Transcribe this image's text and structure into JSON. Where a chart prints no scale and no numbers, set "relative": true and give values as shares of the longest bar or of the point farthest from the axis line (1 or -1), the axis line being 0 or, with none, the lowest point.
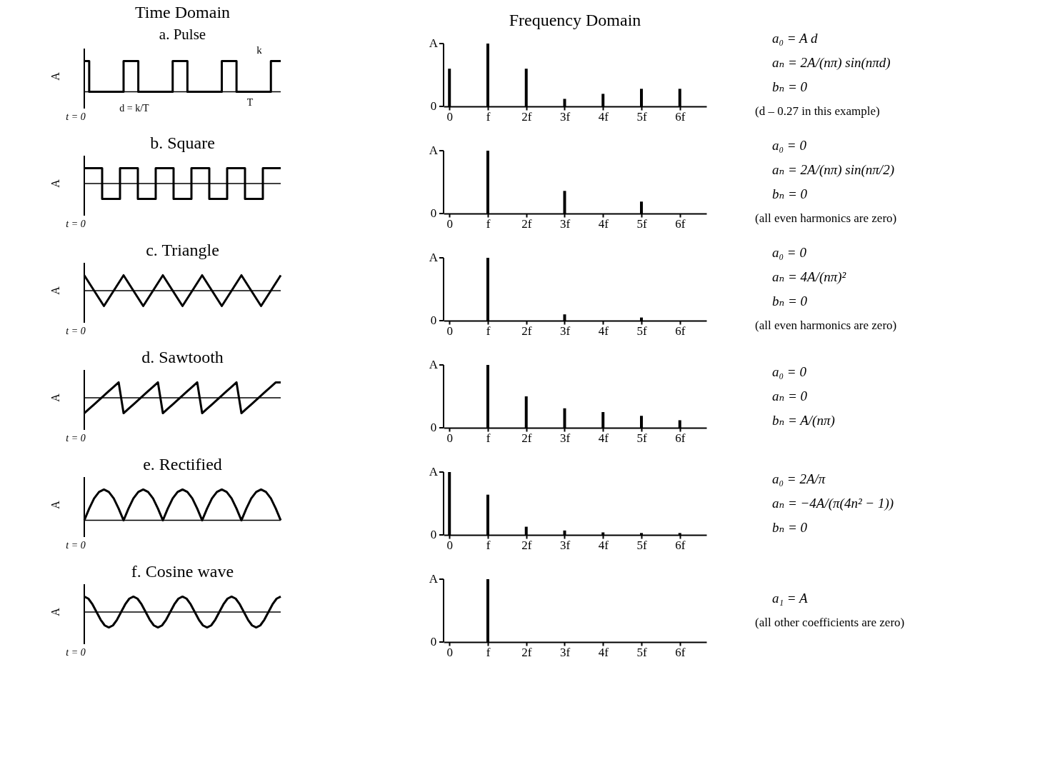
{
  "chart_data": [
    {
      "type": "step",
      "relative": true,
      "title": "Time Domain",
      "subtitle": "a. Pulse",
      "ylabel": "A",
      "color": "#000000",
      "annotations": [
        "d = k/T",
        "k",
        "T",
        "t = 0"
      ],
      "categories": [
        null,
        null,
        null,
        null,
        null,
        null,
        null,
        null,
        null,
        null,
        null,
        null,
        null,
        null,
        null,
        null,
        null,
        null,
        null,
        null,
        null,
        null,
        null,
        null,
        null,
        null,
        null,
        null,
        null,
        null,
        null,
        null,
        null,
        null,
        null,
        null,
        null,
        null,
        null,
        null,
        null
      ],
      "values": [
        1,
        0,
        0,
        0,
        0,
        0,
        0,
        0,
        1,
        1,
        1,
        0,
        0,
        0,
        0,
        0,
        0,
        0,
        1,
        1,
        1,
        0,
        0,
        0,
        0,
        0,
        0,
        0,
        1,
        1,
        1,
        0,
        0,
        0,
        0,
        0,
        0,
        0,
        1,
        1,
        1
      ]
    },
    {
      "type": "bar",
      "relative": true,
      "title": "Frequency Domain",
      "color": "#000000",
      "categories": [
        "0",
        "f",
        "2f",
        "3f",
        "4f",
        "5f",
        "6f"
      ],
      "values": [
        0.6,
        1,
        0.6,
        0.12,
        0.2,
        0.28,
        0.28
      ],
      "annotations": [
        "A",
        "0",
        "a₀ = A d",
        "aₙ = 2A/(nπ) sin(nπd)",
        "bₙ = 0",
        "(d – 0.27 in this example)"
      ]
    },
    {
      "type": "step",
      "relative": true,
      "title": "b. Square",
      "ylabel": "A",
      "color": "#000000",
      "annotations": [
        "t = 0"
      ],
      "categories": [
        null,
        null,
        null,
        null,
        null,
        null,
        null,
        null,
        null,
        null,
        null,
        null
      ],
      "values": [
        1,
        -1,
        1,
        -1,
        1,
        -1,
        1,
        -1,
        1,
        -1,
        1,
        1
      ]
    },
    {
      "type": "bar",
      "relative": true,
      "color": "#000000",
      "categories": [
        "0",
        "f",
        "2f",
        "3f",
        "4f",
        "5f",
        "6f"
      ],
      "values": [
        0,
        1,
        0,
        0.36,
        0,
        0.19,
        0
      ],
      "annotations": [
        "A",
        "0",
        "a₀ = 0",
        "aₙ = 2A/(nπ) sin(nπ/2)",
        "bₙ = 0",
        "(all even harmonics are zero)"
      ]
    },
    {
      "type": "line",
      "relative": true,
      "title": "c. Triangle",
      "ylabel": "A",
      "color": "#000000",
      "annotations": [
        "t = 0"
      ],
      "categories": [
        null,
        null,
        null,
        null,
        null,
        null,
        null,
        null,
        null,
        null,
        null
      ],
      "values": [
        1,
        -1,
        1,
        -1,
        1,
        -1,
        1,
        -1,
        1,
        -1,
        1
      ]
    },
    {
      "type": "bar",
      "relative": true,
      "color": "#000000",
      "categories": [
        "0",
        "f",
        "2f",
        "3f",
        "4f",
        "5f",
        "6f"
      ],
      "values": [
        0,
        1,
        0,
        0.1,
        0,
        0.05,
        0
      ],
      "annotations": [
        "A",
        "0",
        "a₀ = 0",
        "aₙ = 4A/(nπ)²",
        "bₙ = 0",
        "(all even harmonics are zero)"
      ]
    },
    {
      "type": "line",
      "relative": true,
      "title": "d. Sawtooth",
      "ylabel": "A",
      "color": "#000000",
      "annotations": [
        "t = 0"
      ],
      "categories": [
        null,
        null,
        null,
        null,
        null,
        null,
        null,
        null,
        null,
        null,
        null,
        null,
        null,
        null,
        null,
        null,
        null,
        null,
        null,
        null,
        null,
        null,
        null,
        null,
        null,
        null,
        null,
        null,
        null,
        null,
        null,
        null,
        null,
        null,
        null,
        null,
        null,
        null,
        null,
        null,
        null
      ],
      "values": [
        -1,
        -0.71,
        -0.43,
        -0.14,
        0.14,
        0.43,
        0.71,
        1,
        -1,
        -0.71,
        -0.43,
        -0.14,
        0.14,
        0.43,
        0.71,
        1,
        -1,
        -0.71,
        -0.43,
        -0.14,
        0.14,
        0.43,
        0.71,
        1,
        -1,
        -0.71,
        -0.43,
        -0.14,
        0.14,
        0.43,
        0.71,
        1,
        -1,
        -0.71,
        -0.43,
        -0.14,
        0.14,
        0.43,
        0.71,
        1,
        1
      ]
    },
    {
      "type": "bar",
      "relative": true,
      "color": "#000000",
      "categories": [
        "0",
        "f",
        "2f",
        "3f",
        "4f",
        "5f",
        "6f"
      ],
      "values": [
        0,
        1,
        0.5,
        0.31,
        0.25,
        0.19,
        0.12
      ],
      "annotations": [
        "A",
        "0",
        "a₀ = 0",
        "aₙ = 0",
        "bₙ = A/(nπ)"
      ]
    },
    {
      "type": "line",
      "relative": true,
      "title": "e. Rectified",
      "ylabel": "A",
      "color": "#000000",
      "annotations": [
        "t = 0"
      ],
      "categories": [
        null,
        null,
        null,
        null,
        null,
        null,
        null,
        null,
        null,
        null,
        null,
        null,
        null,
        null,
        null,
        null,
        null,
        null,
        null,
        null,
        null,
        null,
        null,
        null,
        null,
        null,
        null,
        null,
        null,
        null,
        null,
        null,
        null,
        null,
        null,
        null,
        null,
        null,
        null,
        null,
        null
      ],
      "values": [
        0,
        0.38,
        0.71,
        0.92,
        1,
        0.92,
        0.71,
        0.38,
        0,
        0.38,
        0.71,
        0.92,
        1,
        0.92,
        0.71,
        0.38,
        0,
        0.38,
        0.71,
        0.92,
        1,
        0.92,
        0.71,
        0.38,
        0,
        0.38,
        0.71,
        0.92,
        1,
        0.92,
        0.71,
        0.38,
        0,
        0.38,
        0.71,
        0.92,
        1,
        0.92,
        0.71,
        0.38,
        0
      ]
    },
    {
      "type": "bar",
      "relative": true,
      "color": "#000000",
      "categories": [
        "0",
        "f",
        "2f",
        "3f",
        "4f",
        "5f",
        "6f"
      ],
      "values": [
        1,
        0.64,
        0.13,
        0.07,
        0.04,
        0.03,
        0.03
      ],
      "annotations": [
        "A",
        "0",
        "a₀ = 2A/π",
        "aₙ = −4A/(π(4n² − 1))",
        "bₙ = 0"
      ]
    },
    {
      "type": "line",
      "relative": true,
      "title": "f. Cosine wave",
      "ylabel": "A",
      "color": "#000000",
      "annotations": [
        "t = 0"
      ],
      "categories": [
        null,
        null,
        null,
        null,
        null,
        null,
        null,
        null,
        null,
        null,
        null,
        null,
        null,
        null,
        null,
        null,
        null,
        null,
        null,
        null,
        null,
        null,
        null,
        null,
        null,
        null,
        null,
        null,
        null,
        null,
        null,
        null,
        null,
        null,
        null,
        null,
        null,
        null,
        null,
        null,
        null,
        null,
        null,
        null,
        null,
        null,
        null,
        null,
        null
      ],
      "values": [
        1,
        0.87,
        0.5,
        0,
        -0.5,
        -0.87,
        -1,
        -0.87,
        -0.5,
        0,
        0.5,
        0.87,
        1,
        0.87,
        0.5,
        0,
        -0.5,
        -0.87,
        -1,
        -0.87,
        -0.5,
        0,
        0.5,
        0.87,
        1,
        0.87,
        0.5,
        0,
        -0.5,
        -0.87,
        -1,
        -0.87,
        -0.5,
        0,
        0.5,
        0.87,
        1,
        0.87,
        0.5,
        0,
        -0.5,
        -0.87,
        -1,
        -0.87,
        -0.5,
        0,
        0.5,
        0.87,
        1
      ]
    },
    {
      "type": "bar",
      "relative": true,
      "color": "#000000",
      "categories": [
        "0",
        "f",
        "2f",
        "3f",
        "4f",
        "5f",
        "6f"
      ],
      "values": [
        0,
        1,
        0,
        0,
        0,
        0,
        0
      ],
      "annotations": [
        "A",
        "0",
        "a₁ = A",
        "(all other coefficients are zero)"
      ]
    }
  ]
}
